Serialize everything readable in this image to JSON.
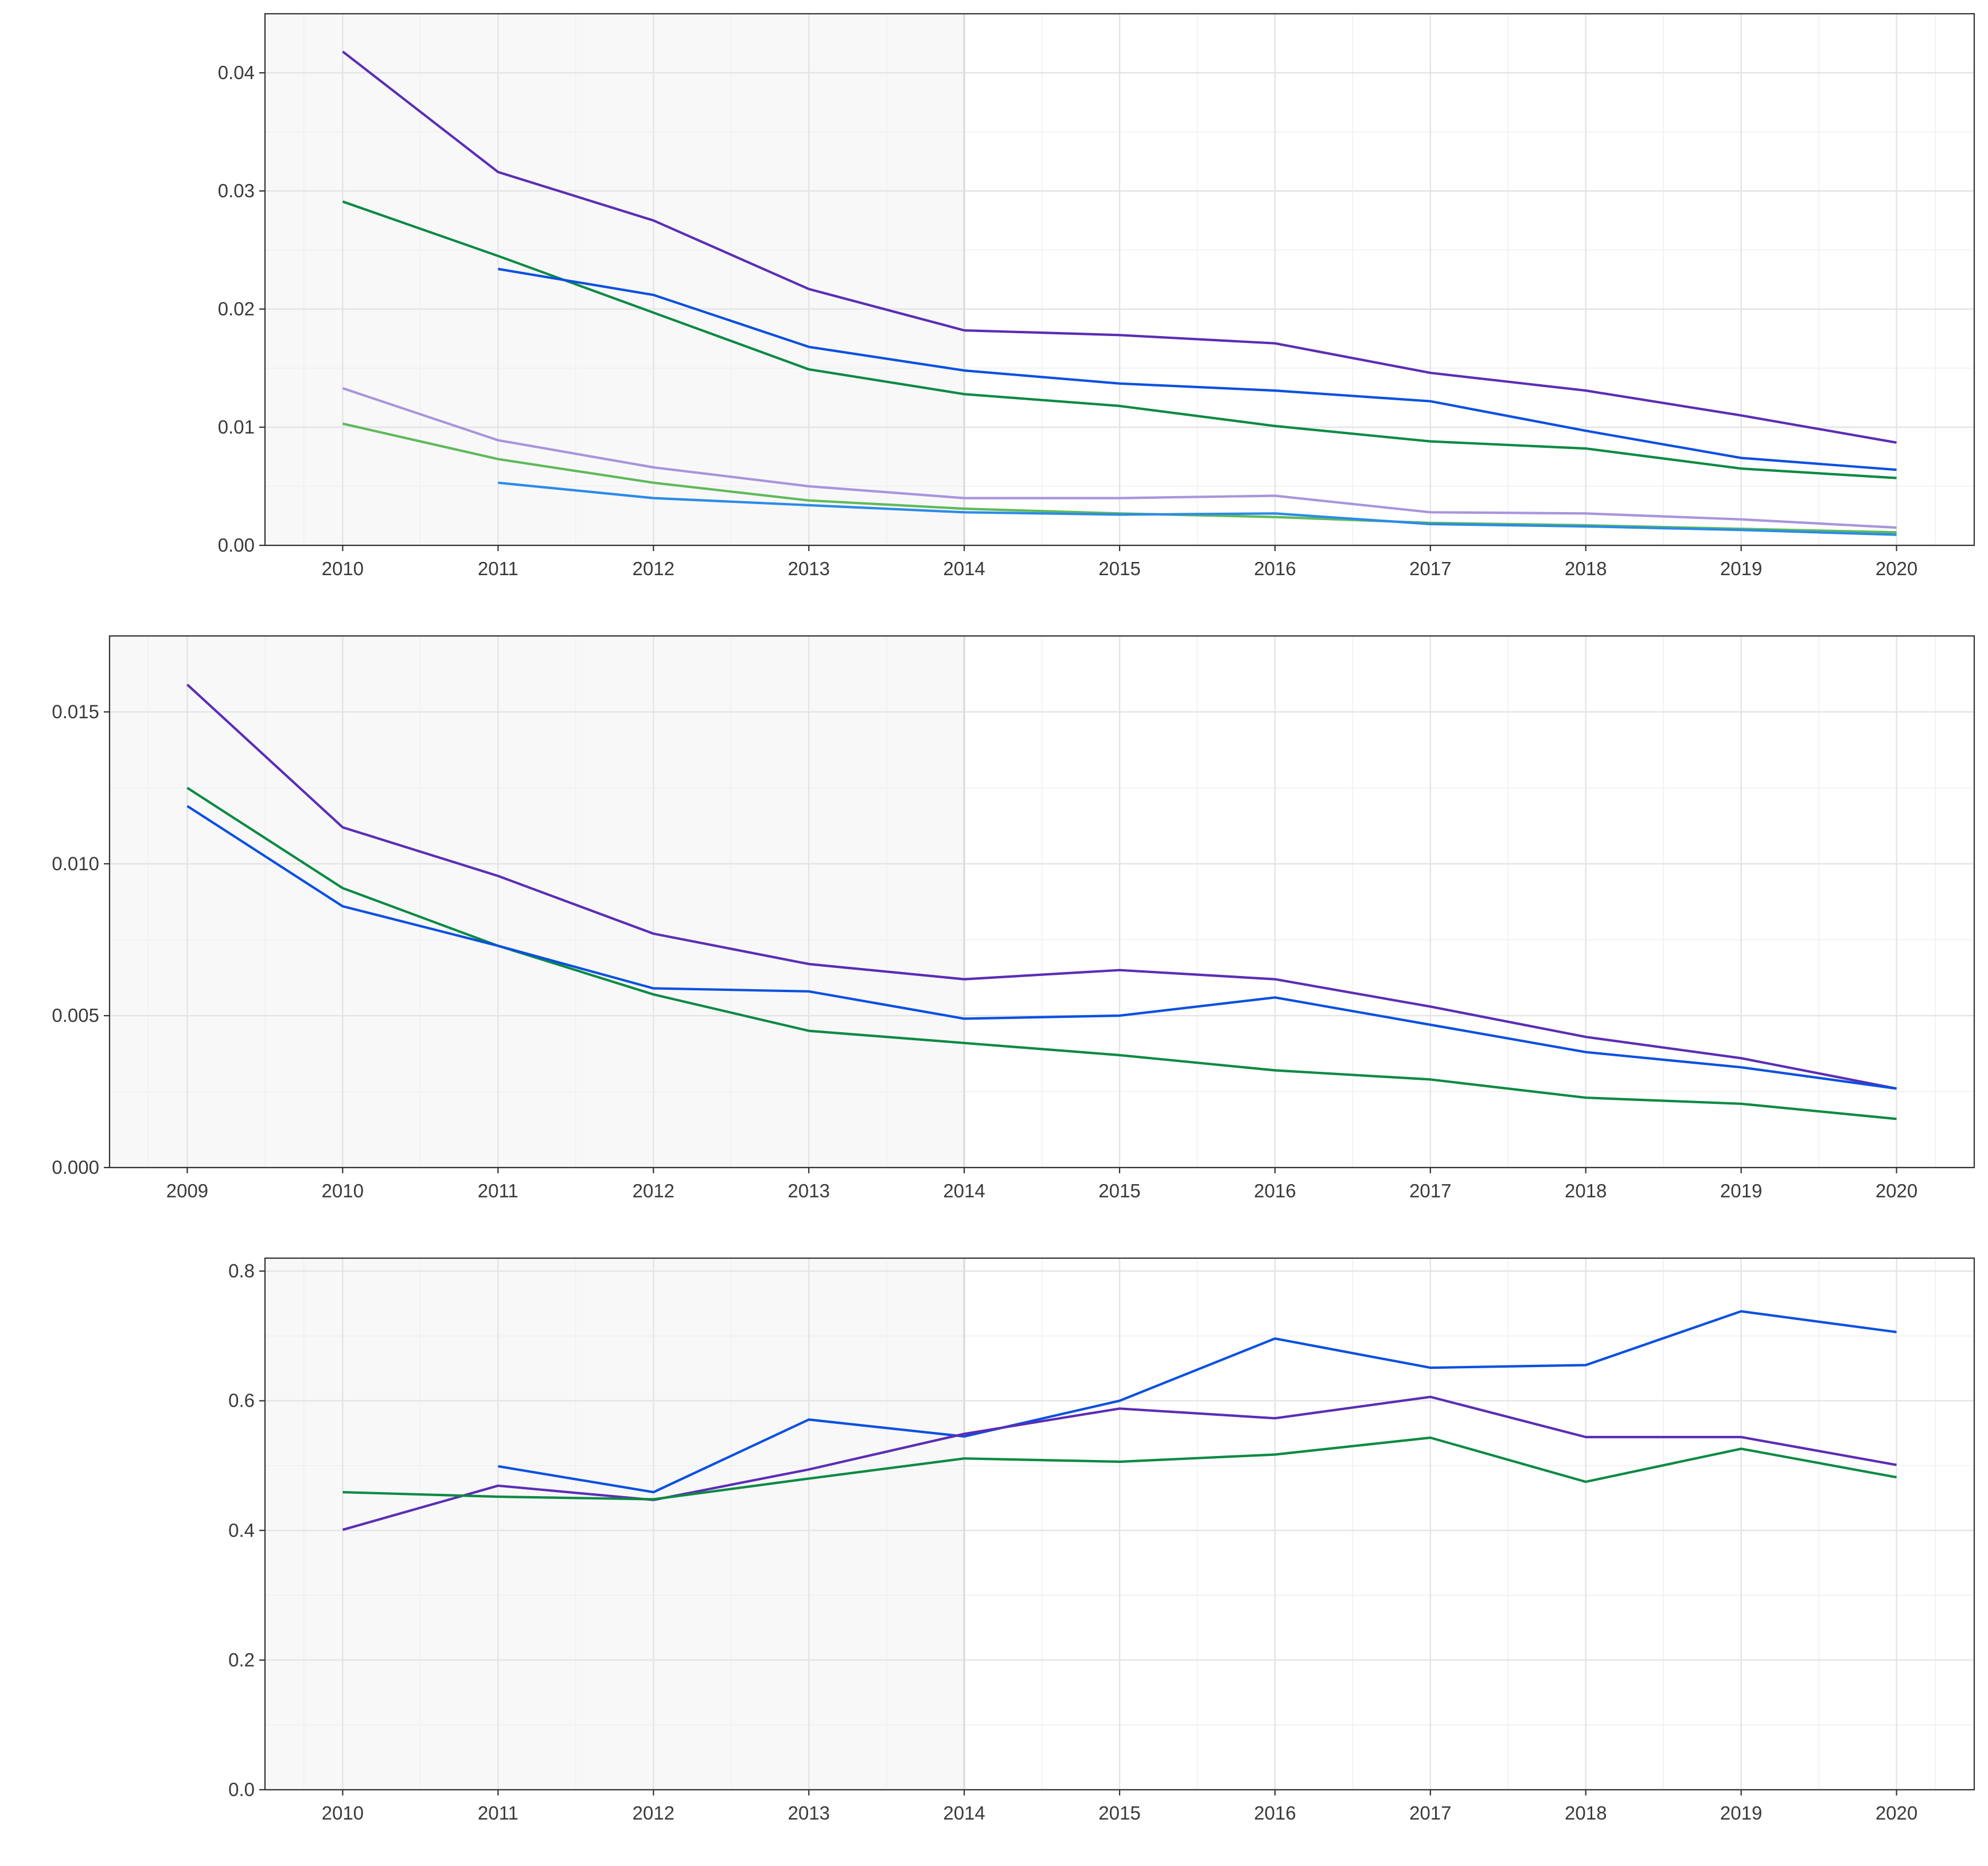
{
  "colors": {
    "panel_background": "#ffffff",
    "shaded_background": "#f8f8f9",
    "grid_major": "#e4e4e8",
    "grid_minor": "#f0f0f3",
    "divider": "#dcdcde",
    "axis": "#333333",
    "tick_text": "#3a3a3a"
  },
  "chart_data": [
    {
      "type": "line",
      "title": "",
      "xlabel": "",
      "ylabel": "",
      "xlim": [
        2009.5,
        2020.5
      ],
      "ylim": [
        0,
        0.045
      ],
      "x_ticks": [
        2010,
        2011,
        2012,
        2013,
        2014,
        2015,
        2016,
        2017,
        2018,
        2019,
        2020
      ],
      "x_tick_labels": [
        "2010",
        "2011",
        "2012",
        "2013",
        "2014",
        "2015",
        "2016",
        "2017",
        "2018",
        "2019",
        "2020"
      ],
      "y_ticks": [
        0,
        0.01,
        0.02,
        0.03,
        0.04
      ],
      "y_tick_labels": [
        "0.00",
        "0.01",
        "0.02",
        "0.03",
        "0.04"
      ],
      "grid": true,
      "legend": "none",
      "shaded_region": [
        2009.5,
        2014
      ],
      "series": [
        {
          "color": "#5b2db5",
          "x": [
            2010,
            2011,
            2012,
            2013,
            2014,
            2015,
            2016,
            2017,
            2018,
            2019,
            2020
          ],
          "y": [
            0.0418,
            0.0316,
            0.0275,
            0.0217,
            0.0182,
            0.0178,
            0.0171,
            0.0146,
            0.0131,
            0.011,
            0.0087
          ]
        },
        {
          "color": "#0b8a43",
          "x": [
            2010,
            2011,
            2012,
            2013,
            2014,
            2015,
            2016,
            2017,
            2018,
            2019,
            2020
          ],
          "y": [
            0.0291,
            0.0245,
            0.0197,
            0.0149,
            0.0128,
            0.0118,
            0.0101,
            0.0088,
            0.0082,
            0.0065,
            0.0057
          ]
        },
        {
          "color": "#0a50e0",
          "x": [
            2011,
            2012,
            2013,
            2014,
            2015,
            2016,
            2017,
            2018,
            2019,
            2020
          ],
          "y": [
            0.0234,
            0.0212,
            0.0168,
            0.0148,
            0.0137,
            0.0131,
            0.0122,
            0.0097,
            0.0074,
            0.0064
          ]
        },
        {
          "color": "#a895dc",
          "x": [
            2010,
            2011,
            2012,
            2013,
            2014,
            2015,
            2016,
            2017,
            2018,
            2019,
            2020
          ],
          "y": [
            0.0133,
            0.0089,
            0.0066,
            0.005,
            0.004,
            0.004,
            0.0042,
            0.0028,
            0.0027,
            0.0022,
            0.0015
          ]
        },
        {
          "color": "#5fba59",
          "x": [
            2010,
            2011,
            2012,
            2013,
            2014,
            2015,
            2016,
            2017,
            2018,
            2019,
            2020
          ],
          "y": [
            0.0103,
            0.0073,
            0.0053,
            0.0038,
            0.0031,
            0.0027,
            0.0024,
            0.0019,
            0.0017,
            0.0014,
            0.0011
          ]
        },
        {
          "color": "#2b8be6",
          "x": [
            2011,
            2012,
            2013,
            2014,
            2015,
            2016,
            2017,
            2018,
            2019,
            2020
          ],
          "y": [
            0.0053,
            0.004,
            0.0034,
            0.0028,
            0.0026,
            0.0027,
            0.0018,
            0.0016,
            0.0013,
            0.0009
          ]
        }
      ]
    },
    {
      "type": "line",
      "title": "",
      "xlabel": "",
      "ylabel": "",
      "xlim": [
        2008.5,
        2020.5
      ],
      "ylim": [
        0,
        0.0175
      ],
      "x_ticks": [
        2009,
        2010,
        2011,
        2012,
        2013,
        2014,
        2015,
        2016,
        2017,
        2018,
        2019,
        2020
      ],
      "x_tick_labels": [
        "2009",
        "2010",
        "2011",
        "2012",
        "2013",
        "2014",
        "2015",
        "2016",
        "2017",
        "2018",
        "2019",
        "2020"
      ],
      "y_ticks": [
        0,
        0.005,
        0.01,
        0.015
      ],
      "y_tick_labels": [
        "0.000",
        "0.005",
        "0.010",
        "0.015"
      ],
      "grid": true,
      "legend": "none",
      "shaded_region": [
        2008.5,
        2014
      ],
      "series": [
        {
          "color": "#5b2db5",
          "x": [
            2009,
            2010,
            2011,
            2012,
            2013,
            2014,
            2015,
            2016,
            2017,
            2018,
            2019,
            2020
          ],
          "y": [
            0.0159,
            0.0112,
            0.0096,
            0.0077,
            0.0067,
            0.0062,
            0.0065,
            0.0062,
            0.0053,
            0.0043,
            0.0036,
            0.0026
          ]
        },
        {
          "color": "#0b8a43",
          "x": [
            2009,
            2010,
            2011,
            2012,
            2013,
            2014,
            2015,
            2016,
            2017,
            2018,
            2019,
            2020
          ],
          "y": [
            0.0125,
            0.0092,
            0.0073,
            0.0057,
            0.0045,
            0.0041,
            0.0037,
            0.0032,
            0.0029,
            0.0023,
            0.0021,
            0.0016
          ]
        },
        {
          "color": "#0a50e0",
          "x": [
            2009,
            2010,
            2011,
            2012,
            2013,
            2014,
            2015,
            2016,
            2017,
            2018,
            2019,
            2020
          ],
          "y": [
            0.0119,
            0.0086,
            0.0073,
            0.0059,
            0.0058,
            0.0049,
            0.005,
            0.0056,
            0.0047,
            0.0038,
            0.0033,
            0.0026
          ]
        }
      ]
    },
    {
      "type": "line",
      "title": "",
      "xlabel": "",
      "ylabel": "",
      "xlim": [
        2009.5,
        2020.5
      ],
      "ylim": [
        0,
        0.82
      ],
      "x_ticks": [
        2010,
        2011,
        2012,
        2013,
        2014,
        2015,
        2016,
        2017,
        2018,
        2019,
        2020
      ],
      "x_tick_labels": [
        "2010",
        "2011",
        "2012",
        "2013",
        "2014",
        "2015",
        "2016",
        "2017",
        "2018",
        "2019",
        "2020"
      ],
      "y_ticks": [
        0,
        0.2,
        0.4,
        0.6,
        0.8
      ],
      "y_tick_labels": [
        "0.0",
        "0.2",
        "0.4",
        "0.6",
        "0.8"
      ],
      "grid": true,
      "legend": "none",
      "shaded_region": [
        2009.5,
        2014
      ],
      "series": [
        {
          "color": "#0a50e0",
          "x": [
            2011,
            2012,
            2013,
            2014,
            2015,
            2016,
            2017,
            2018,
            2019,
            2020
          ],
          "y": [
            0.499,
            0.459,
            0.571,
            0.545,
            0.6,
            0.696,
            0.651,
            0.655,
            0.738,
            0.706
          ]
        },
        {
          "color": "#5b2db5",
          "x": [
            2010,
            2011,
            2012,
            2013,
            2014,
            2015,
            2016,
            2017,
            2018,
            2019,
            2020
          ],
          "y": [
            0.401,
            0.469,
            0.447,
            0.494,
            0.549,
            0.588,
            0.573,
            0.606,
            0.544,
            0.544,
            0.501
          ]
        },
        {
          "color": "#0b8a43",
          "x": [
            2010,
            2011,
            2012,
            2013,
            2014,
            2015,
            2016,
            2017,
            2018,
            2019,
            2020
          ],
          "y": [
            0.459,
            0.452,
            0.448,
            0.48,
            0.511,
            0.506,
            0.517,
            0.543,
            0.475,
            0.526,
            0.482
          ]
        }
      ]
    }
  ]
}
